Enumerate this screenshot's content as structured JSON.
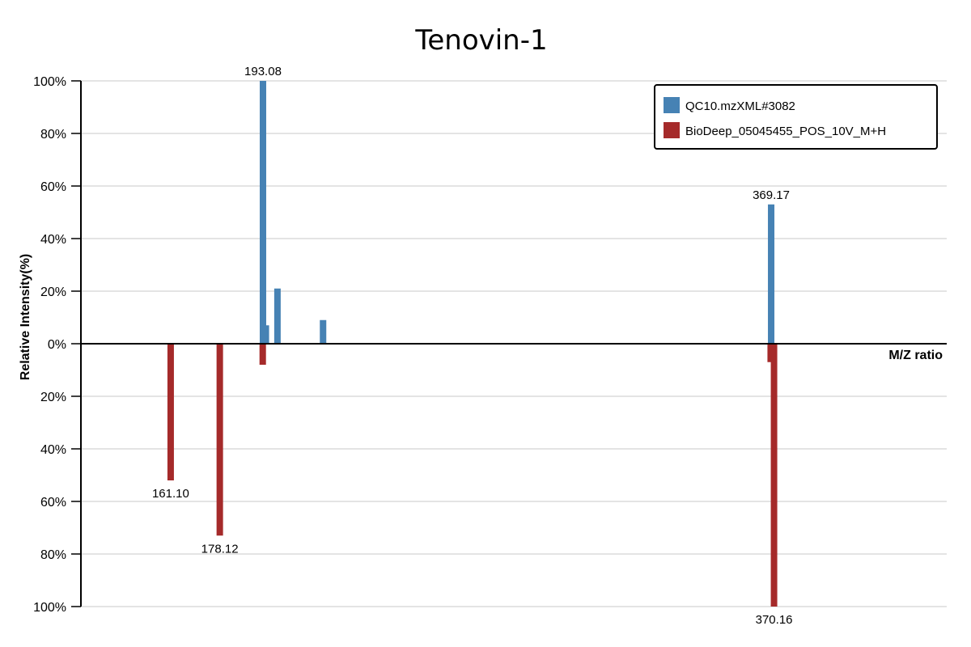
{
  "chart_data": {
    "type": "bar",
    "title": "Tenovin-1",
    "xlabel": "M/Z ratio",
    "ylabel": "Relative Intensity(%)",
    "ylim_top": [
      0,
      100
    ],
    "ylim_bottom": [
      0,
      100
    ],
    "xlim": [
      130,
      430
    ],
    "yticks_top": [
      "0%",
      "20%",
      "40%",
      "60%",
      "80%",
      "100%"
    ],
    "yticks_bottom": [
      "20%",
      "40%",
      "60%",
      "80%",
      "100%"
    ],
    "grid": true,
    "legend_position": "top-right",
    "series": [
      {
        "name": "QC10.mzXML#3082",
        "direction": "up",
        "color": "#4682b4",
        "peaks": [
          {
            "mz": 193.08,
            "intensity": 100,
            "label": "193.08"
          },
          {
            "mz": 194.08,
            "intensity": 7,
            "label": ""
          },
          {
            "mz": 198.1,
            "intensity": 21,
            "label": ""
          },
          {
            "mz": 213.9,
            "intensity": 9,
            "label": ""
          },
          {
            "mz": 369.17,
            "intensity": 53,
            "label": "369.17"
          }
        ]
      },
      {
        "name": "BioDeep_05045455_POS_10V_M+H",
        "direction": "down",
        "color": "#a52a2a",
        "peaks": [
          {
            "mz": 161.1,
            "intensity": 52,
            "label": "161.10"
          },
          {
            "mz": 178.12,
            "intensity": 73,
            "label": "178.12"
          },
          {
            "mz": 193.0,
            "intensity": 8,
            "label": ""
          },
          {
            "mz": 369.0,
            "intensity": 7,
            "label": ""
          },
          {
            "mz": 370.16,
            "intensity": 100,
            "label": "370.16"
          }
        ]
      }
    ]
  }
}
